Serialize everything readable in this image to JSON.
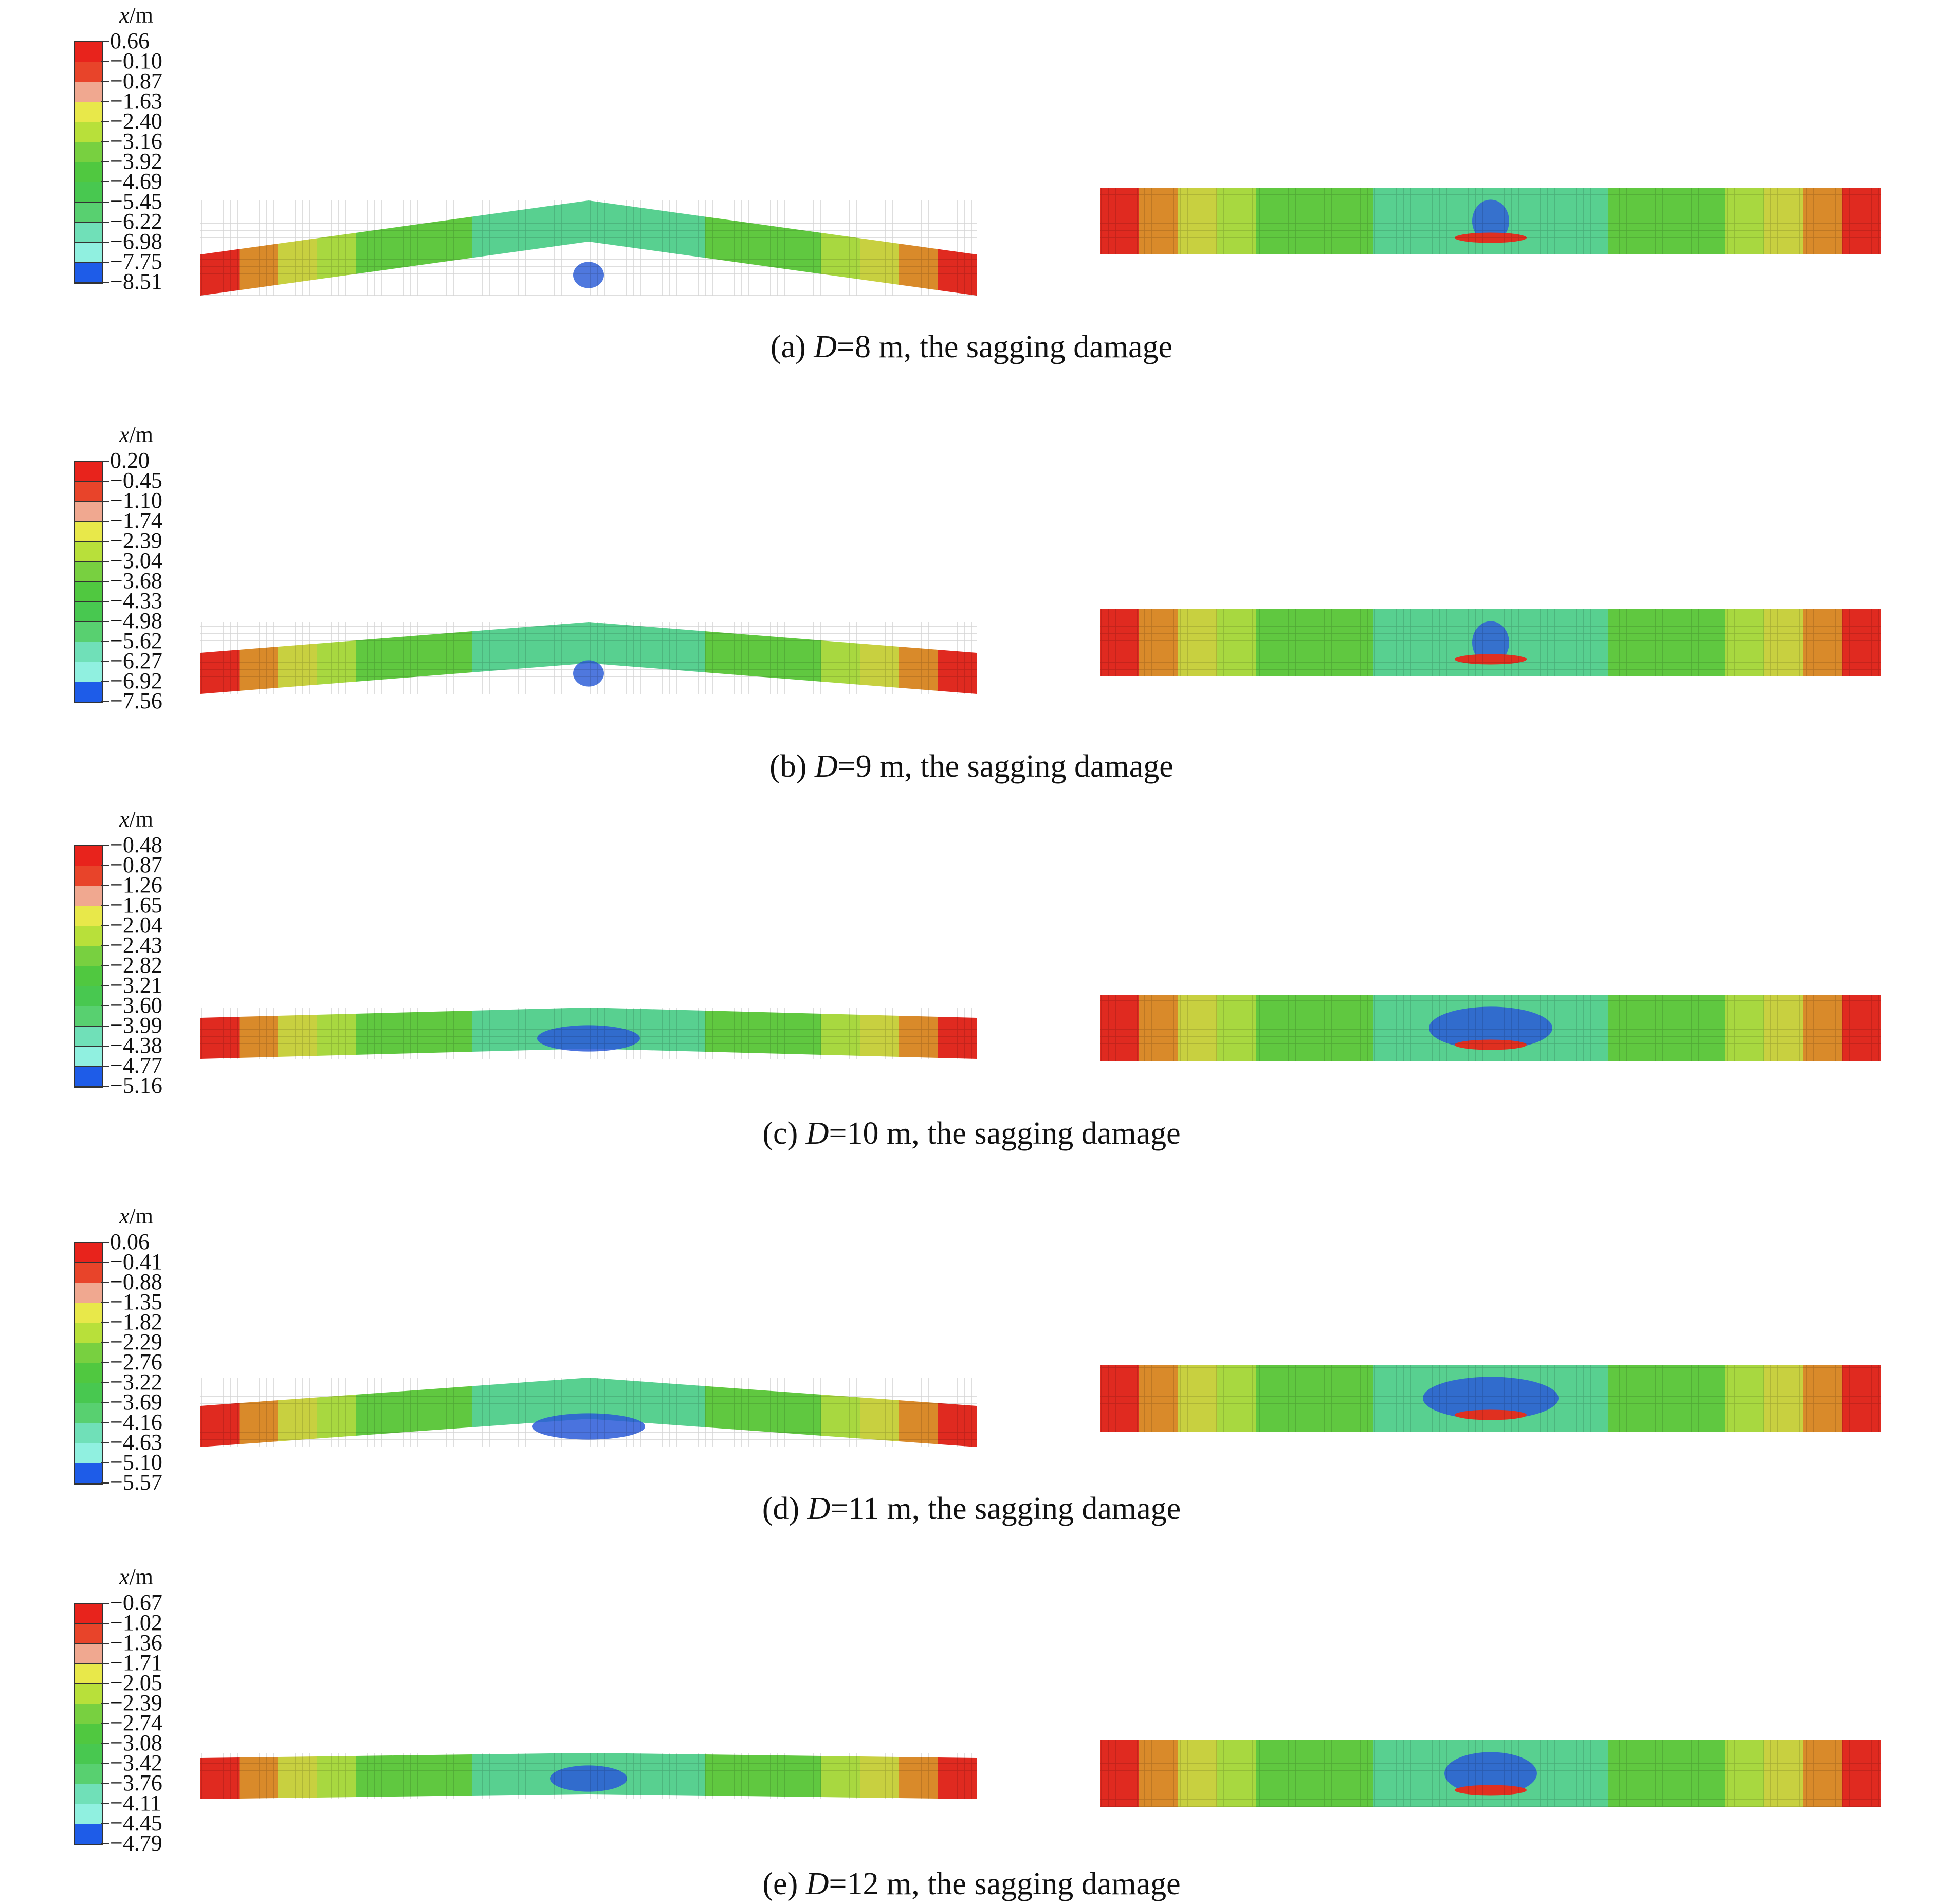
{
  "unit_label": {
    "var": "x",
    "unit": "/m"
  },
  "colors": [
    "#e8231c",
    "#e8442a",
    "#f0a890",
    "#e8e84a",
    "#b8e03a",
    "#78d040",
    "#50c840",
    "#48c850",
    "#58d070",
    "#70e0b8",
    "#90f0e0",
    "#1e5ce8",
    "#1e3ad8",
    "#2040e0"
  ],
  "panels": [
    {
      "id": "a",
      "prefix": "(a) ",
      "var": "D",
      "rest": "=8 m, the sagging damage",
      "legend": [
        "0.66",
        "−0.10",
        "−0.87",
        "−1.63",
        "−2.40",
        "−3.16",
        "−3.92",
        "−4.69",
        "−5.45",
        "−6.22",
        "−6.98",
        "−7.75",
        "−8.51"
      ]
    },
    {
      "id": "b",
      "prefix": "(b) ",
      "var": "D",
      "rest": "=9 m, the sagging damage",
      "legend": [
        "0.20",
        "−0.45",
        "−1.10",
        "−1.74",
        "−2.39",
        "−3.04",
        "−3.68",
        "−4.33",
        "−4.98",
        "−5.62",
        "−6.27",
        "−6.92",
        "−7.56"
      ]
    },
    {
      "id": "c",
      "prefix": "(c) ",
      "var": "D",
      "rest": "=10 m, the sagging damage",
      "legend": [
        "−0.48",
        "−0.87",
        "−1.26",
        "−1.65",
        "−2.04",
        "−2.43",
        "−2.82",
        "−3.21",
        "−3.60",
        "−3.99",
        "−4.38",
        "−4.77",
        "−5.16"
      ]
    },
    {
      "id": "d",
      "prefix": "(d) ",
      "var": "D",
      "rest": "=11 m, the sagging damage",
      "legend": [
        "0.06",
        "−0.41",
        "−0.88",
        "−1.35",
        "−1.82",
        "−2.29",
        "−2.76",
        "−3.22",
        "−3.69",
        "−4.16",
        "−4.63",
        "−5.10",
        "−5.57"
      ]
    },
    {
      "id": "e",
      "prefix": "(e) ",
      "var": "D",
      "rest": "=12 m, the sagging damage",
      "legend": [
        "−0.67",
        "−1.02",
        "−1.36",
        "−1.71",
        "−2.05",
        "−2.39",
        "−2.74",
        "−3.08",
        "−3.42",
        "−3.76",
        "−4.11",
        "−4.45",
        "−4.79"
      ]
    }
  ]
}
